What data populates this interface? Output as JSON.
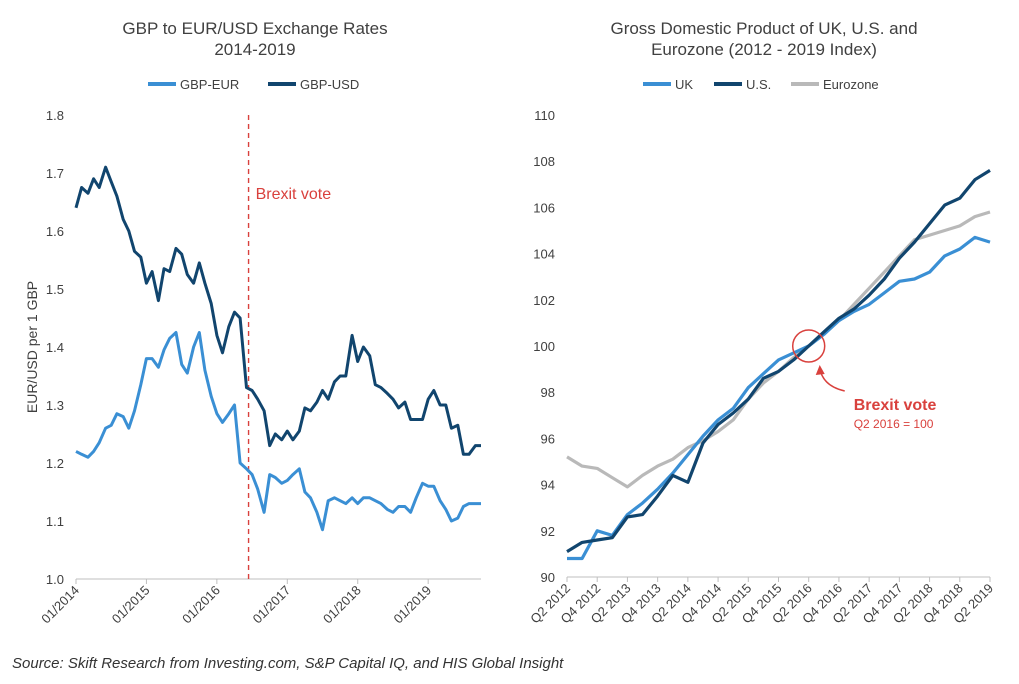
{
  "source": "Source: Skift Research from Investing.com, S&P Capital IQ, and HIS Global Insight",
  "chart_data": [
    {
      "type": "line",
      "title": "GBP to EUR/USD Exchange Rates",
      "subtitle": "2014-2019",
      "ylabel": "EUR/USD per 1 GBP",
      "xlabel": "",
      "ylim": [
        1.0,
        1.8
      ],
      "yticks": [
        "1.0",
        "1.1",
        "1.2",
        "1.3",
        "1.4",
        "1.5",
        "1.6",
        "1.7",
        "1.8"
      ],
      "xlim": [
        2014.0,
        2019.75
      ],
      "xticks": [
        {
          "label": "01/2014",
          "x": 2014.0
        },
        {
          "label": "01/2015",
          "x": 2015.0
        },
        {
          "label": "01/2016",
          "x": 2016.0
        },
        {
          "label": "01/2017",
          "x": 2017.0
        },
        {
          "label": "01/2018",
          "x": 2018.0
        },
        {
          "label": "01/2019",
          "x": 2019.0
        }
      ],
      "legend_position": "top",
      "annotation": {
        "label": "Brexit vote",
        "x": 2016.45
      },
      "series": [
        {
          "name": "GBP-EUR",
          "color": "#3a8fd4",
          "x": [
            2014.0,
            2014.08,
            2014.17,
            2014.25,
            2014.33,
            2014.42,
            2014.5,
            2014.58,
            2014.67,
            2014.75,
            2014.83,
            2014.92,
            2015.0,
            2015.08,
            2015.17,
            2015.25,
            2015.33,
            2015.42,
            2015.5,
            2015.58,
            2015.67,
            2015.75,
            2015.83,
            2015.92,
            2016.0,
            2016.08,
            2016.17,
            2016.25,
            2016.33,
            2016.42,
            2016.5,
            2016.58,
            2016.67,
            2016.75,
            2016.83,
            2016.92,
            2017.0,
            2017.08,
            2017.17,
            2017.25,
            2017.33,
            2017.42,
            2017.5,
            2017.58,
            2017.67,
            2017.75,
            2017.83,
            2017.92,
            2018.0,
            2018.08,
            2018.17,
            2018.25,
            2018.33,
            2018.42,
            2018.5,
            2018.58,
            2018.67,
            2018.75,
            2018.83,
            2018.92,
            2019.0,
            2019.08,
            2019.17,
            2019.25,
            2019.33,
            2019.42,
            2019.5,
            2019.58,
            2019.67,
            2019.75
          ],
          "values": [
            1.22,
            1.215,
            1.21,
            1.22,
            1.235,
            1.26,
            1.265,
            1.285,
            1.28,
            1.26,
            1.29,
            1.335,
            1.38,
            1.38,
            1.365,
            1.395,
            1.415,
            1.425,
            1.37,
            1.355,
            1.4,
            1.425,
            1.36,
            1.315,
            1.285,
            1.27,
            1.285,
            1.3,
            1.2,
            1.19,
            1.18,
            1.155,
            1.115,
            1.18,
            1.175,
            1.165,
            1.17,
            1.18,
            1.19,
            1.15,
            1.14,
            1.115,
            1.085,
            1.135,
            1.14,
            1.135,
            1.13,
            1.14,
            1.13,
            1.14,
            1.14,
            1.135,
            1.13,
            1.12,
            1.115,
            1.125,
            1.125,
            1.115,
            1.14,
            1.165,
            1.16,
            1.16,
            1.135,
            1.12,
            1.1,
            1.105,
            1.125,
            1.13,
            1.13,
            1.13
          ]
        },
        {
          "name": "GBP-USD",
          "color": "#11456e",
          "x": [
            2014.0,
            2014.08,
            2014.17,
            2014.25,
            2014.33,
            2014.42,
            2014.5,
            2014.58,
            2014.67,
            2014.75,
            2014.83,
            2014.92,
            2015.0,
            2015.08,
            2015.17,
            2015.25,
            2015.33,
            2015.42,
            2015.5,
            2015.58,
            2015.67,
            2015.75,
            2015.83,
            2015.92,
            2016.0,
            2016.08,
            2016.17,
            2016.25,
            2016.33,
            2016.42,
            2016.5,
            2016.58,
            2016.67,
            2016.75,
            2016.83,
            2016.92,
            2017.0,
            2017.08,
            2017.17,
            2017.25,
            2017.33,
            2017.42,
            2017.5,
            2017.58,
            2017.67,
            2017.75,
            2017.83,
            2017.92,
            2018.0,
            2018.08,
            2018.17,
            2018.25,
            2018.33,
            2018.42,
            2018.5,
            2018.58,
            2018.67,
            2018.75,
            2018.83,
            2018.92,
            2019.0,
            2019.08,
            2019.17,
            2019.25,
            2019.33,
            2019.42,
            2019.5,
            2019.58,
            2019.67,
            2019.75
          ],
          "values": [
            1.64,
            1.675,
            1.665,
            1.69,
            1.675,
            1.71,
            1.685,
            1.66,
            1.62,
            1.6,
            1.565,
            1.555,
            1.51,
            1.53,
            1.48,
            1.535,
            1.53,
            1.57,
            1.56,
            1.525,
            1.51,
            1.545,
            1.51,
            1.475,
            1.42,
            1.39,
            1.435,
            1.46,
            1.45,
            1.33,
            1.325,
            1.31,
            1.29,
            1.23,
            1.25,
            1.24,
            1.255,
            1.24,
            1.255,
            1.295,
            1.29,
            1.305,
            1.325,
            1.31,
            1.34,
            1.35,
            1.35,
            1.42,
            1.375,
            1.4,
            1.385,
            1.335,
            1.33,
            1.32,
            1.31,
            1.295,
            1.305,
            1.275,
            1.275,
            1.275,
            1.31,
            1.325,
            1.3,
            1.3,
            1.26,
            1.265,
            1.215,
            1.215,
            1.23,
            1.23
          ]
        }
      ]
    },
    {
      "type": "line",
      "title": "Gross Domestic Product of UK, U.S. and",
      "subtitle": "Eurozone (2012 - 2019 Index)",
      "xlabel": "",
      "ylabel": "",
      "ylim": [
        90,
        110
      ],
      "yticks": [
        "90",
        "92",
        "94",
        "96",
        "98",
        "100",
        "102",
        "104",
        "106",
        "108",
        "110"
      ],
      "categories": [
        "Q2 2012",
        "Q3 2012",
        "Q4 2012",
        "Q1 2013",
        "Q2 2013",
        "Q3 2013",
        "Q4 2013",
        "Q1 2014",
        "Q2 2014",
        "Q3 2014",
        "Q4 2014",
        "Q1 2015",
        "Q2 2015",
        "Q3 2015",
        "Q4 2015",
        "Q1 2016",
        "Q2 2016",
        "Q3 2016",
        "Q4 2016",
        "Q1 2017",
        "Q2 2017",
        "Q3 2017",
        "Q4 2017",
        "Q1 2018",
        "Q2 2018",
        "Q3 2018",
        "Q4 2018",
        "Q1 2019",
        "Q2 2019"
      ],
      "tick_labels": [
        "Q2 2012",
        "Q4 2012",
        "Q2 2013",
        "Q4 2013",
        "Q2 2014",
        "Q4 2014",
        "Q2 2015",
        "Q4 2015",
        "Q2 2016",
        "Q4 2016",
        "Q2 2017",
        "Q4 2017",
        "Q2 2018",
        "Q4 2018",
        "Q2 2019"
      ],
      "legend_position": "top",
      "annotation": {
        "label": "Brexit vote",
        "sublabel": "Q2 2016 = 100",
        "category": "Q2 2016",
        "value": 100
      },
      "series": [
        {
          "name": "UK",
          "color": "#3a8fd4",
          "values": [
            90.8,
            90.8,
            92.0,
            91.8,
            92.7,
            93.2,
            93.8,
            94.5,
            95.3,
            96.1,
            96.8,
            97.3,
            98.2,
            98.8,
            99.4,
            99.7,
            100.0,
            100.5,
            101.1,
            101.5,
            101.8,
            102.3,
            102.8,
            102.9,
            103.2,
            103.9,
            104.2,
            104.7,
            104.5
          ]
        },
        {
          "name": "U.S.",
          "color": "#11456e",
          "values": [
            91.1,
            91.5,
            91.6,
            91.7,
            92.6,
            92.7,
            93.5,
            94.4,
            94.1,
            95.8,
            96.6,
            97.1,
            97.7,
            98.6,
            98.9,
            99.4,
            100.0,
            100.6,
            101.2,
            101.6,
            102.2,
            102.9,
            103.8,
            104.5,
            105.3,
            106.1,
            106.4,
            107.2,
            107.6
          ]
        },
        {
          "name": "Eurozone",
          "color": "#b9b9b9",
          "values": [
            95.2,
            94.8,
            94.7,
            94.3,
            93.9,
            94.4,
            94.8,
            95.1,
            95.6,
            95.9,
            96.3,
            96.8,
            97.7,
            98.4,
            98.9,
            99.5,
            100.0,
            100.5,
            101.1,
            101.8,
            102.5,
            103.2,
            103.9,
            104.6,
            104.8,
            105.0,
            105.2,
            105.6,
            105.8
          ]
        }
      ]
    }
  ]
}
